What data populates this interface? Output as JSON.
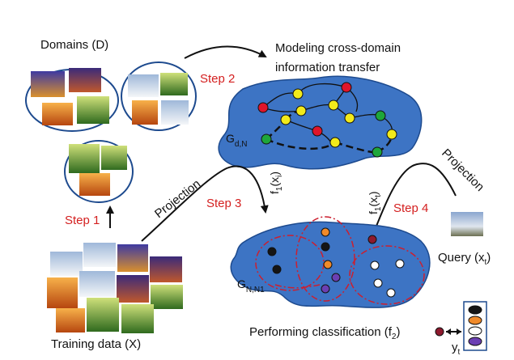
{
  "labels": {
    "domains": "Domains (D)",
    "modeling_line1": "Modeling cross-domain",
    "modeling_line2": "information transfer",
    "step1": "Step 1",
    "step2": "Step 2",
    "step3": "Step 3",
    "step4": "Step 4",
    "projection_left": "Projection",
    "projection_right": "Projection",
    "training_data": "Training data (X)",
    "query": "Query (x",
    "query_sub": "t",
    "query_close": ")",
    "performing_classification": "Performing classification (f",
    "pc_sub": "2",
    "pc_close": ")",
    "g_top_main": "G",
    "g_top_sub": "d,N",
    "g_bottom_main": "G",
    "g_bottom_sub": "N,N1",
    "f1_left_main": "f",
    "f1_left_sub": "1",
    "f1_left_arg": "(x",
    "f1_left_arg_sub": "i",
    "f1_left_close": ")",
    "f1_right_main": "f",
    "f1_right_sub": "1",
    "f1_right_arg": "(x",
    "f1_right_arg_sub": "t",
    "f1_right_close": ")",
    "yt_main": "y",
    "yt_sub": "t"
  },
  "colors": {
    "blob_fill": "#3d74c4",
    "blob_stroke": "#1d4a8e",
    "node_red": "#e0152a",
    "node_yellow": "#f2ea1a",
    "node_green": "#1ea63a",
    "node_black": "#151515",
    "node_orange": "#f08a2a",
    "node_white": "#ffffff",
    "node_purple": "#6b3fb3",
    "node_darkred": "#8e1a2e",
    "step_text": "#d42020",
    "dashed_red": "#cc1f2f"
  }
}
